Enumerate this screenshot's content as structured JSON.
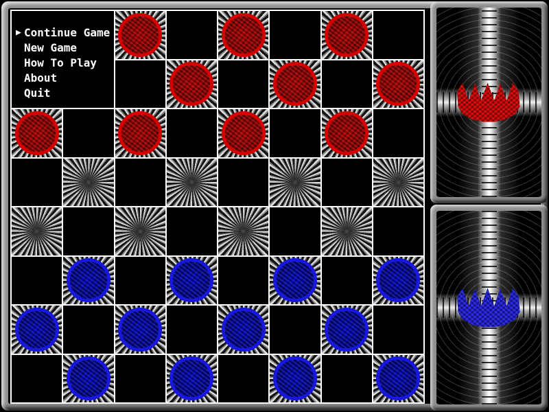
{
  "menu": {
    "cursor_icon": "▶",
    "items": [
      {
        "label": "Continue Game",
        "selected": true
      },
      {
        "label": "New Game",
        "selected": false
      },
      {
        "label": "How To Play",
        "selected": false
      },
      {
        "label": "About",
        "selected": false
      },
      {
        "label": "Quit",
        "selected": false
      }
    ]
  },
  "board": {
    "rows": 8,
    "cols": 8,
    "red_pieces_visible": 10,
    "blue_pieces_visible": 12,
    "pieces": [
      {
        "row": 0,
        "col": 2,
        "color": "red"
      },
      {
        "row": 0,
        "col": 4,
        "color": "red"
      },
      {
        "row": 0,
        "col": 6,
        "color": "red"
      },
      {
        "row": 1,
        "col": 3,
        "color": "red"
      },
      {
        "row": 1,
        "col": 5,
        "color": "red"
      },
      {
        "row": 1,
        "col": 7,
        "color": "red"
      },
      {
        "row": 2,
        "col": 0,
        "color": "red"
      },
      {
        "row": 2,
        "col": 2,
        "color": "red"
      },
      {
        "row": 2,
        "col": 4,
        "color": "red"
      },
      {
        "row": 2,
        "col": 6,
        "color": "red"
      },
      {
        "row": 5,
        "col": 1,
        "color": "blue"
      },
      {
        "row": 5,
        "col": 3,
        "color": "blue"
      },
      {
        "row": 5,
        "col": 5,
        "color": "blue"
      },
      {
        "row": 5,
        "col": 7,
        "color": "blue"
      },
      {
        "row": 6,
        "col": 0,
        "color": "blue"
      },
      {
        "row": 6,
        "col": 2,
        "color": "blue"
      },
      {
        "row": 6,
        "col": 4,
        "color": "blue"
      },
      {
        "row": 6,
        "col": 6,
        "color": "blue"
      },
      {
        "row": 7,
        "col": 1,
        "color": "blue"
      },
      {
        "row": 7,
        "col": 3,
        "color": "blue"
      },
      {
        "row": 7,
        "col": 5,
        "color": "blue"
      },
      {
        "row": 7,
        "col": 7,
        "color": "blue"
      }
    ]
  },
  "panels": {
    "top": {
      "crown": "red"
    },
    "bottom": {
      "crown": "blue"
    }
  },
  "colors": {
    "red_piece": "#d40000",
    "red_piece_dark": "#7a0000",
    "blue_piece": "#1717dd",
    "blue_piece_dark": "#000a96",
    "red_crown": "#c40000",
    "blue_crown": "#1c1ccd",
    "grid_line": "#ffffff",
    "frame_gray": "#8f8f8f",
    "menu_text": "#ffffff",
    "menu_background": "#000000"
  }
}
